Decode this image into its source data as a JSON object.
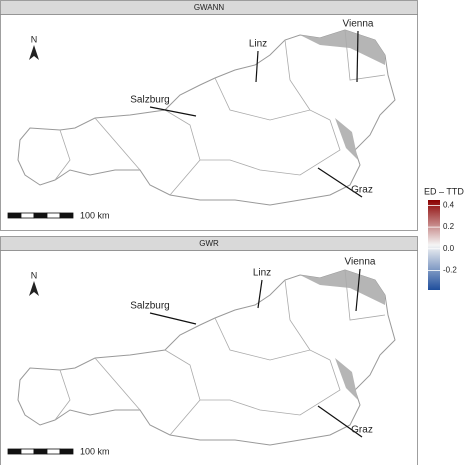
{
  "panels": [
    {
      "title": "GWANN",
      "north": "N",
      "scale_label": "100 km",
      "cities": [
        "Linz",
        "Vienna",
        "Salzburg",
        "Graz"
      ]
    },
    {
      "title": "GWR",
      "north": "N",
      "scale_label": "100 km",
      "cities": [
        "Linz",
        "Vienna",
        "Salzburg",
        "Graz"
      ]
    }
  ],
  "legend": {
    "title": "ED – TTD",
    "lim": [
      -0.38,
      0.45
    ],
    "ticks": [
      0.4,
      0.2,
      {
        "value": 0,
        "label": "0.0"
      },
      -0.2
    ],
    "colors": [
      "#1f4e9c",
      "#f5f5f5",
      "#8b0000"
    ]
  }
}
